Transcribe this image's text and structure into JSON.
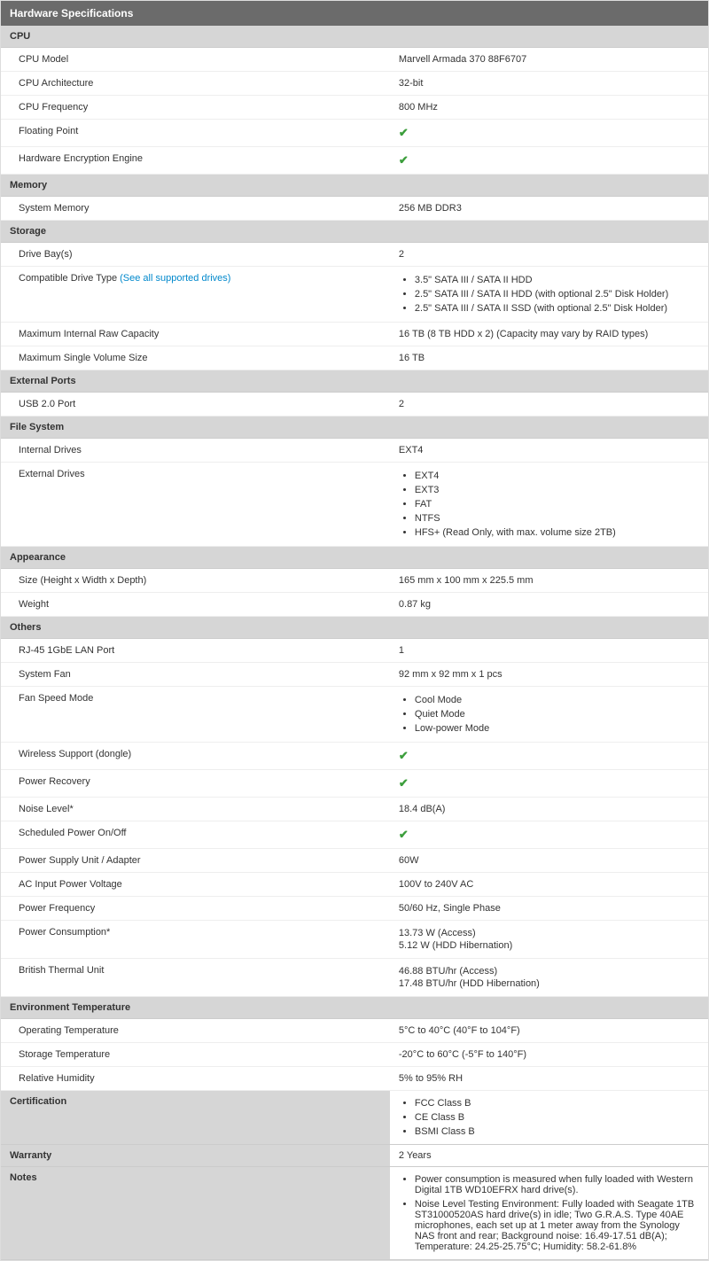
{
  "title": "Hardware Specifications",
  "checkmark": "✔",
  "link_text": "(See all supported drives)",
  "sections": {
    "cpu": {
      "heading": "CPU",
      "rows": {
        "model": {
          "label": "CPU Model",
          "value": "Marvell Armada 370 88F6707"
        },
        "arch": {
          "label": "CPU Architecture",
          "value": "32-bit"
        },
        "freq": {
          "label": "CPU Frequency",
          "value": "800 MHz"
        },
        "fp": {
          "label": "Floating Point",
          "check": true
        },
        "enc": {
          "label": "Hardware Encryption Engine",
          "check": true
        }
      }
    },
    "memory": {
      "heading": "Memory",
      "rows": {
        "sys": {
          "label": "System Memory",
          "value": "256 MB DDR3"
        }
      }
    },
    "storage": {
      "heading": "Storage",
      "rows": {
        "bays": {
          "label": "Drive Bay(s)",
          "value": "2"
        },
        "compat": {
          "label": "Compatible Drive Type ",
          "list": [
            "3.5\" SATA III / SATA II HDD",
            "2.5\" SATA III / SATA II HDD (with optional 2.5\" Disk Holder)",
            "2.5\" SATA III / SATA II SSD (with optional 2.5\" Disk Holder)"
          ]
        },
        "maxraw": {
          "label": "Maximum Internal Raw Capacity",
          "value": "16 TB (8 TB HDD x 2) (Capacity may vary by RAID types)"
        },
        "maxvol": {
          "label": "Maximum Single Volume Size",
          "value": "16 TB"
        }
      }
    },
    "ports": {
      "heading": "External Ports",
      "rows": {
        "usb": {
          "label": "USB 2.0 Port",
          "value": "2"
        }
      }
    },
    "fs": {
      "heading": "File System",
      "rows": {
        "internal": {
          "label": "Internal Drives",
          "value": "EXT4"
        },
        "external": {
          "label": "External Drives",
          "list": [
            "EXT4",
            "EXT3",
            "FAT",
            "NTFS",
            "HFS+ (Read Only, with max. volume size 2TB)"
          ]
        }
      }
    },
    "appearance": {
      "heading": "Appearance",
      "rows": {
        "size": {
          "label": "Size (Height x Width x Depth)",
          "value": "165 mm x 100 mm x 225.5 mm"
        },
        "weight": {
          "label": "Weight",
          "value": "0.87 kg"
        }
      }
    },
    "others": {
      "heading": "Others",
      "rows": {
        "lan": {
          "label": "RJ-45 1GbE LAN Port",
          "value": "1"
        },
        "fan": {
          "label": "System Fan",
          "value": "92 mm x 92 mm x 1 pcs"
        },
        "fanmode": {
          "label": "Fan Speed Mode",
          "list": [
            "Cool Mode",
            "Quiet Mode",
            "Low-power Mode"
          ]
        },
        "wireless": {
          "label": "Wireless Support (dongle)",
          "check": true
        },
        "recovery": {
          "label": "Power Recovery",
          "check": true
        },
        "noise": {
          "label": "Noise Level*",
          "value": "18.4 dB(A)"
        },
        "sched": {
          "label": "Scheduled Power On/Off",
          "check": true
        },
        "psu": {
          "label": "Power Supply Unit / Adapter",
          "value": "60W"
        },
        "acin": {
          "label": "AC Input Power Voltage",
          "value": "100V to 240V AC"
        },
        "pfreq": {
          "label": "Power Frequency",
          "value": "50/60 Hz, Single Phase"
        },
        "pcons": {
          "label": "Power Consumption*",
          "lines": [
            "13.73 W (Access)",
            "5.12 W (HDD Hibernation)"
          ]
        },
        "btu": {
          "label": "British Thermal Unit",
          "lines": [
            "46.88 BTU/hr (Access)",
            "17.48 BTU/hr (HDD Hibernation)"
          ]
        }
      }
    },
    "env": {
      "heading": "Environment Temperature",
      "rows": {
        "op": {
          "label": "Operating Temperature",
          "value": "5°C to 40°C (40°F to 104°F)"
        },
        "stor": {
          "label": "Storage Temperature",
          "value": "-20°C to 60°C (-5°F to 140°F)"
        },
        "hum": {
          "label": "Relative Humidity",
          "value": "5% to 95% RH"
        }
      }
    },
    "cert": {
      "heading": "Certification",
      "list": [
        "FCC Class B",
        "CE Class B",
        "BSMI Class B"
      ]
    },
    "warranty": {
      "heading": "Warranty",
      "value": "2 Years"
    },
    "notes": {
      "heading": "Notes",
      "list": [
        "Power consumption is measured when fully loaded with Western Digital 1TB WD10EFRX hard drive(s).",
        "Noise Level Testing Environment: Fully loaded with Seagate 1TB ST31000520AS hard drive(s) in idle; Two G.R.A.S. Type 40AE microphones, each set up at 1 meter away from the Synology NAS front and rear; Background noise: 16.49-17.51 dB(A); Temperature: 24.25-25.75°C; Humidity: 58.2-61.8%"
      ]
    }
  }
}
